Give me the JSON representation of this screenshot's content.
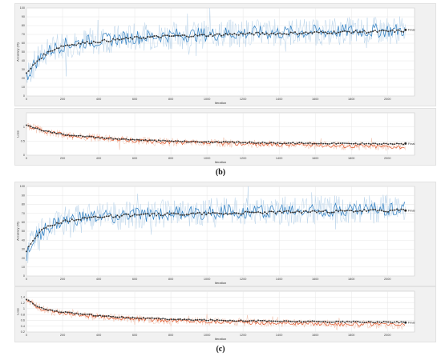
{
  "captions": [
    "(b)",
    "(c)"
  ],
  "chart_data": [
    {
      "id": "b-accuracy",
      "type": "line",
      "xlabel": "Iteration",
      "ylabel": "Accuracy (%)",
      "xlim": [
        0,
        2150
      ],
      "ylim": [
        0,
        100
      ],
      "xticks": [
        0,
        200,
        400,
        600,
        800,
        1000,
        1200,
        1400,
        1600,
        1800,
        2000
      ],
      "yticks": [
        0,
        10,
        20,
        30,
        40,
        50,
        60,
        70,
        80,
        90,
        100
      ],
      "legend": "Final",
      "legend_position": "right",
      "grid": true,
      "colors": {
        "raw": "#b8d3ea",
        "smoothed": "#2f7fc2",
        "validation": "#333333"
      },
      "series": [
        {
          "role": "smoothed",
          "x": [
            0,
            50,
            100,
            150,
            200,
            300,
            400,
            500,
            600,
            700,
            800,
            900,
            1000,
            1100,
            1200,
            1300,
            1400,
            1500,
            1600,
            1700,
            1800,
            1900,
            2000,
            2100
          ],
          "values": [
            22,
            38,
            48,
            54,
            58,
            61,
            63,
            65,
            67,
            68,
            69,
            69.5,
            70,
            71,
            71.5,
            72,
            72,
            72.5,
            73,
            73.5,
            74,
            74,
            74.5,
            75
          ]
        },
        {
          "role": "validation",
          "x": [
            0,
            50,
            100,
            150,
            200,
            300,
            400,
            500,
            600,
            700,
            800,
            900,
            1000,
            1100,
            1200,
            1300,
            1400,
            1500,
            1600,
            1700,
            1800,
            1900,
            2000,
            2100
          ],
          "values": [
            25,
            38,
            47,
            53,
            57,
            60,
            62,
            64,
            66,
            67,
            68,
            68.5,
            69,
            70,
            70.5,
            71,
            71,
            71.5,
            72,
            72.5,
            73,
            73,
            73.5,
            74
          ]
        }
      ]
    },
    {
      "id": "b-loss",
      "type": "line",
      "xlabel": "Iteration",
      "ylabel": "Loss",
      "xlim": [
        0,
        2150
      ],
      "ylim": [
        0,
        1.5
      ],
      "xticks": [
        0,
        200,
        400,
        600,
        800,
        1000,
        1200,
        1400,
        1600,
        1800,
        2000
      ],
      "yticks": [
        0,
        0.5,
        1
      ],
      "legend": "Final",
      "legend_position": "right",
      "grid": true,
      "colors": {
        "raw": "#f2c2ae",
        "smoothed": "#e0582c",
        "validation": "#333333"
      },
      "series": [
        {
          "role": "smoothed",
          "x": [
            0,
            50,
            100,
            200,
            300,
            400,
            500,
            600,
            700,
            800,
            900,
            1000,
            1100,
            1200,
            1300,
            1400,
            1500,
            1600,
            1700,
            1800,
            1900,
            2000,
            2100
          ],
          "values": [
            1.05,
            0.95,
            0.85,
            0.72,
            0.66,
            0.6,
            0.55,
            0.52,
            0.48,
            0.46,
            0.44,
            0.43,
            0.42,
            0.4,
            0.39,
            0.38,
            0.37,
            0.36,
            0.34,
            0.33,
            0.32,
            0.31,
            0.3
          ]
        },
        {
          "role": "validation",
          "x": [
            0,
            50,
            100,
            200,
            300,
            400,
            500,
            600,
            700,
            800,
            900,
            1000,
            1100,
            1200,
            1300,
            1400,
            1500,
            1600,
            1700,
            1800,
            1900,
            2000,
            2100
          ],
          "values": [
            1.05,
            0.95,
            0.86,
            0.74,
            0.68,
            0.62,
            0.58,
            0.55,
            0.52,
            0.5,
            0.48,
            0.47,
            0.46,
            0.45,
            0.44,
            0.43,
            0.43,
            0.42,
            0.42,
            0.41,
            0.41,
            0.4,
            0.4
          ]
        }
      ]
    },
    {
      "id": "c-accuracy",
      "type": "line",
      "xlabel": "Iteration",
      "ylabel": "Accuracy (%)",
      "xlim": [
        0,
        2150
      ],
      "ylim": [
        0,
        100
      ],
      "xticks": [
        0,
        200,
        400,
        600,
        800,
        1000,
        1200,
        1400,
        1600,
        1800,
        2000
      ],
      "yticks": [
        0,
        10,
        20,
        30,
        40,
        50,
        60,
        70,
        80,
        90,
        100
      ],
      "legend": "Final",
      "legend_position": "right",
      "grid": true,
      "colors": {
        "raw": "#b8d3ea",
        "smoothed": "#2f7fc2",
        "validation": "#333333"
      },
      "series": [
        {
          "role": "smoothed",
          "x": [
            0,
            50,
            100,
            150,
            200,
            300,
            400,
            500,
            600,
            700,
            800,
            900,
            1000,
            1100,
            1200,
            1300,
            1400,
            1500,
            1600,
            1700,
            1800,
            1900,
            2000,
            2100
          ],
          "values": [
            25,
            42,
            52,
            57,
            60,
            64,
            66,
            67,
            68,
            69,
            70,
            70.5,
            71,
            72,
            72,
            72.5,
            73,
            73,
            73.5,
            74,
            74,
            74.5,
            75,
            75
          ]
        },
        {
          "role": "validation",
          "x": [
            0,
            50,
            100,
            150,
            200,
            300,
            400,
            500,
            600,
            700,
            800,
            900,
            1000,
            1100,
            1200,
            1300,
            1400,
            1500,
            1600,
            1700,
            1800,
            1900,
            2000,
            2100
          ],
          "values": [
            28,
            44,
            53,
            58,
            61,
            64,
            66,
            67,
            68,
            68.5,
            69,
            69.5,
            70,
            70,
            70.5,
            71,
            71,
            71.5,
            72,
            72,
            72.5,
            73,
            73,
            73.5
          ]
        }
      ]
    },
    {
      "id": "c-loss",
      "type": "line",
      "xlabel": "Iteration",
      "ylabel": "Loss",
      "xlim": [
        0,
        2150
      ],
      "ylim": [
        0.2,
        1.6
      ],
      "xticks": [
        0,
        200,
        400,
        600,
        800,
        1000,
        1200,
        1400,
        1600,
        1800,
        2000
      ],
      "yticks": [
        0.2,
        0.4,
        0.6,
        0.8,
        1,
        1.2,
        1.4
      ],
      "legend": "Final",
      "legend_position": "right",
      "grid": true,
      "colors": {
        "raw": "#f2c2ae",
        "smoothed": "#e0582c",
        "validation": "#333333"
      },
      "series": [
        {
          "role": "smoothed",
          "x": [
            0,
            50,
            100,
            200,
            300,
            400,
            500,
            600,
            700,
            800,
            900,
            1000,
            1100,
            1200,
            1300,
            1400,
            1500,
            1600,
            1700,
            1800,
            1900,
            2000,
            2100
          ],
          "values": [
            1.3,
            1.1,
            0.95,
            0.85,
            0.78,
            0.72,
            0.68,
            0.65,
            0.62,
            0.6,
            0.58,
            0.56,
            0.55,
            0.54,
            0.52,
            0.51,
            0.5,
            0.49,
            0.48,
            0.47,
            0.46,
            0.45,
            0.44
          ]
        },
        {
          "role": "validation",
          "x": [
            0,
            50,
            100,
            200,
            300,
            400,
            500,
            600,
            700,
            800,
            900,
            1000,
            1100,
            1200,
            1300,
            1400,
            1500,
            1600,
            1700,
            1800,
            1900,
            2000,
            2100
          ],
          "values": [
            1.32,
            1.12,
            0.98,
            0.88,
            0.82,
            0.76,
            0.72,
            0.69,
            0.66,
            0.64,
            0.62,
            0.61,
            0.6,
            0.59,
            0.58,
            0.57,
            0.56,
            0.56,
            0.55,
            0.55,
            0.54,
            0.54,
            0.53
          ]
        }
      ]
    }
  ]
}
